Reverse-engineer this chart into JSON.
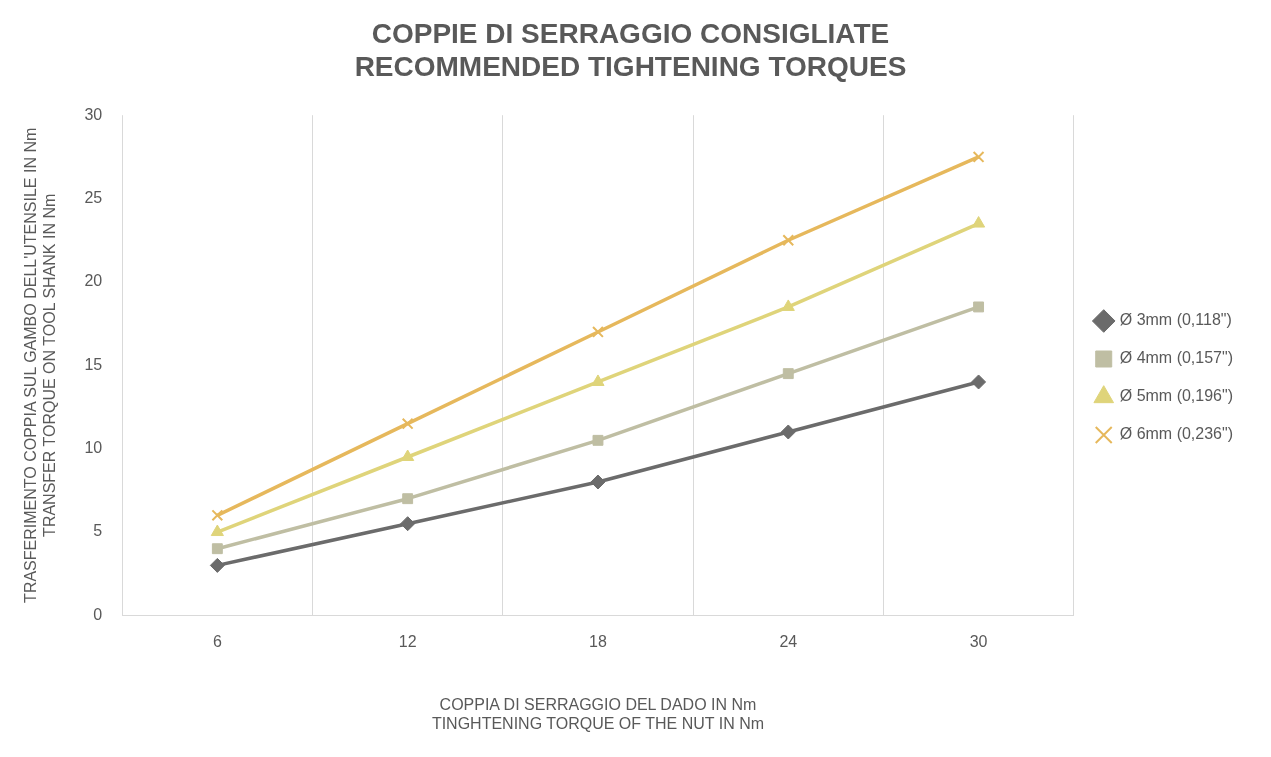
{
  "chart_data": {
    "type": "line",
    "title": "COPPIE DI SERRAGGIO CONSIGLIATE\nRECOMMENDED TIGHTENING TORQUES",
    "xlabel": "COPPIA DI SERRAGGIO DEL DADO IN Nm\nTINGHTENING TORQUE OF THE NUT IN Nm",
    "ylabel": "TRASFERIMENTO COPPIA SUL GAMBO DELL'UTENSILE IN Nm\nTRANSFER TORQUE ON TOOL SHANK IN Nm",
    "categories": [
      "6",
      "12",
      "18",
      "24",
      "30"
    ],
    "ylim": [
      0,
      30
    ],
    "yticks": [
      0,
      5,
      10,
      15,
      20,
      25,
      30
    ],
    "grid": "x",
    "legend": "right",
    "series": [
      {
        "name": "Ø 3mm (0,118\")",
        "color": "#6b6b6b",
        "marker": "diamond",
        "values": [
          3,
          5.5,
          8,
          11,
          14
        ]
      },
      {
        "name": "Ø 4mm (0,157\")",
        "color": "#bfbea3",
        "marker": "square",
        "values": [
          4,
          7,
          10.5,
          14.5,
          18.5
        ]
      },
      {
        "name": "Ø 5mm (0,196\")",
        "color": "#dfd47a",
        "marker": "triangle",
        "values": [
          5,
          9.5,
          14,
          18.5,
          23.5
        ]
      },
      {
        "name": "Ø 6mm (0,236\")",
        "color": "#e6b85c",
        "marker": "cross",
        "values": [
          6,
          11.5,
          17,
          22.5,
          27.5
        ]
      }
    ]
  }
}
